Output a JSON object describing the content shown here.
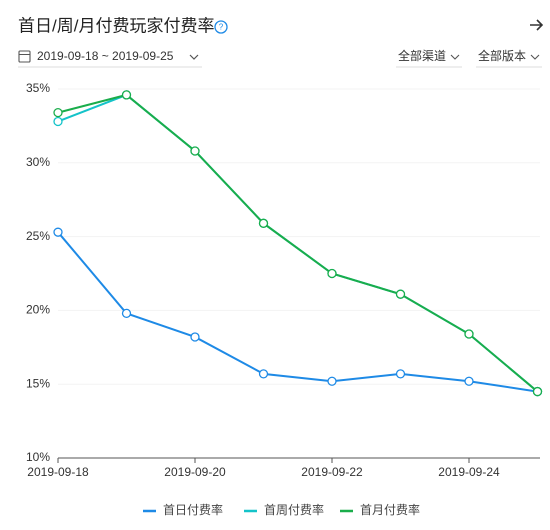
{
  "header": {
    "title": "首日/周/月付费玩家付费率",
    "date_range": "2019-09-18 ~ 2019-09-25",
    "filters": [
      "全部渠道",
      "全部版本"
    ]
  },
  "chart_data": {
    "type": "line",
    "categories": [
      "2019-09-18",
      null,
      "2019-09-20",
      null,
      "2019-09-22",
      null,
      "2019-09-24",
      null
    ],
    "series": [
      {
        "name": "首日付费率",
        "color": "#1e8ae6",
        "values": [
          25.3,
          19.8,
          18.2,
          15.7,
          15.2,
          15.7,
          15.2,
          14.5
        ]
      },
      {
        "name": "首周付费率",
        "color": "#14c3c9",
        "values": [
          32.8,
          34.6,
          30.8,
          25.9,
          22.5,
          21.1,
          18.4,
          14.5
        ]
      },
      {
        "name": "首月付费率",
        "color": "#1aad4b",
        "values": [
          33.4,
          34.6,
          30.8,
          25.9,
          22.5,
          21.1,
          18.4,
          14.5
        ]
      }
    ],
    "ylim": [
      10,
      35
    ],
    "yticks": [
      {
        "value": 10,
        "label": "10%"
      },
      {
        "value": 15,
        "label": "15%"
      },
      {
        "value": 20,
        "label": "20%"
      },
      {
        "value": 25,
        "label": "25%"
      },
      {
        "value": 30,
        "label": "30%"
      },
      {
        "value": 35,
        "label": "35%"
      }
    ],
    "grid": true
  }
}
